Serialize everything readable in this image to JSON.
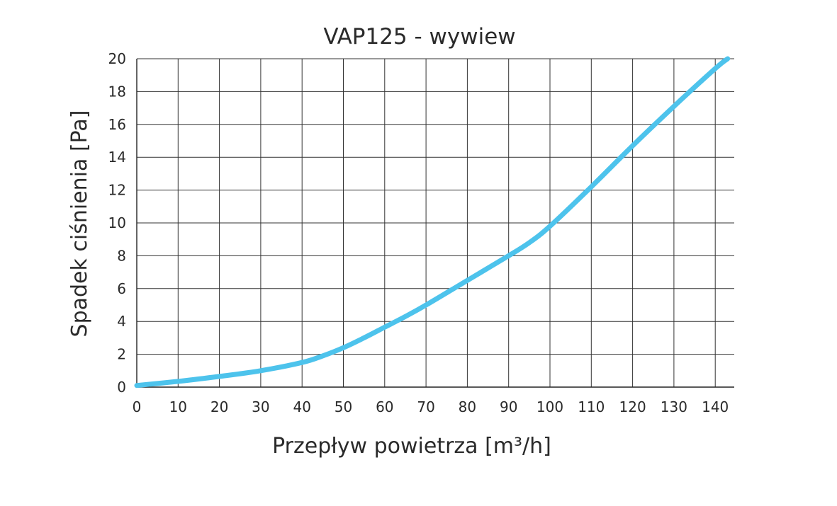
{
  "chart_data": {
    "type": "line",
    "title": "VAP125 - wywiew",
    "xlabel": "Przepływ powietrza [m³/h]",
    "ylabel": "Spadek ciśnienia [Pa]",
    "xlim": [
      0,
      145
    ],
    "ylim": [
      0,
      20
    ],
    "x_ticks": [
      0,
      10,
      20,
      30,
      40,
      50,
      60,
      70,
      80,
      90,
      100,
      110,
      120,
      130,
      140
    ],
    "y_ticks": [
      0,
      2,
      4,
      6,
      8,
      10,
      12,
      14,
      16,
      18,
      20
    ],
    "grid": true,
    "color": "#4DC3EC",
    "series": [
      {
        "x": [
          0,
          10,
          20,
          30,
          40,
          45,
          50,
          55,
          60,
          65,
          70,
          80,
          90,
          95,
          100,
          110,
          120,
          130,
          140,
          143
        ],
        "y": [
          0.1,
          0.35,
          0.65,
          1.0,
          1.5,
          1.9,
          2.4,
          3.0,
          3.65,
          4.3,
          5.0,
          6.5,
          8.0,
          8.8,
          9.8,
          12.2,
          14.7,
          17.1,
          19.4,
          20.0
        ]
      }
    ]
  }
}
